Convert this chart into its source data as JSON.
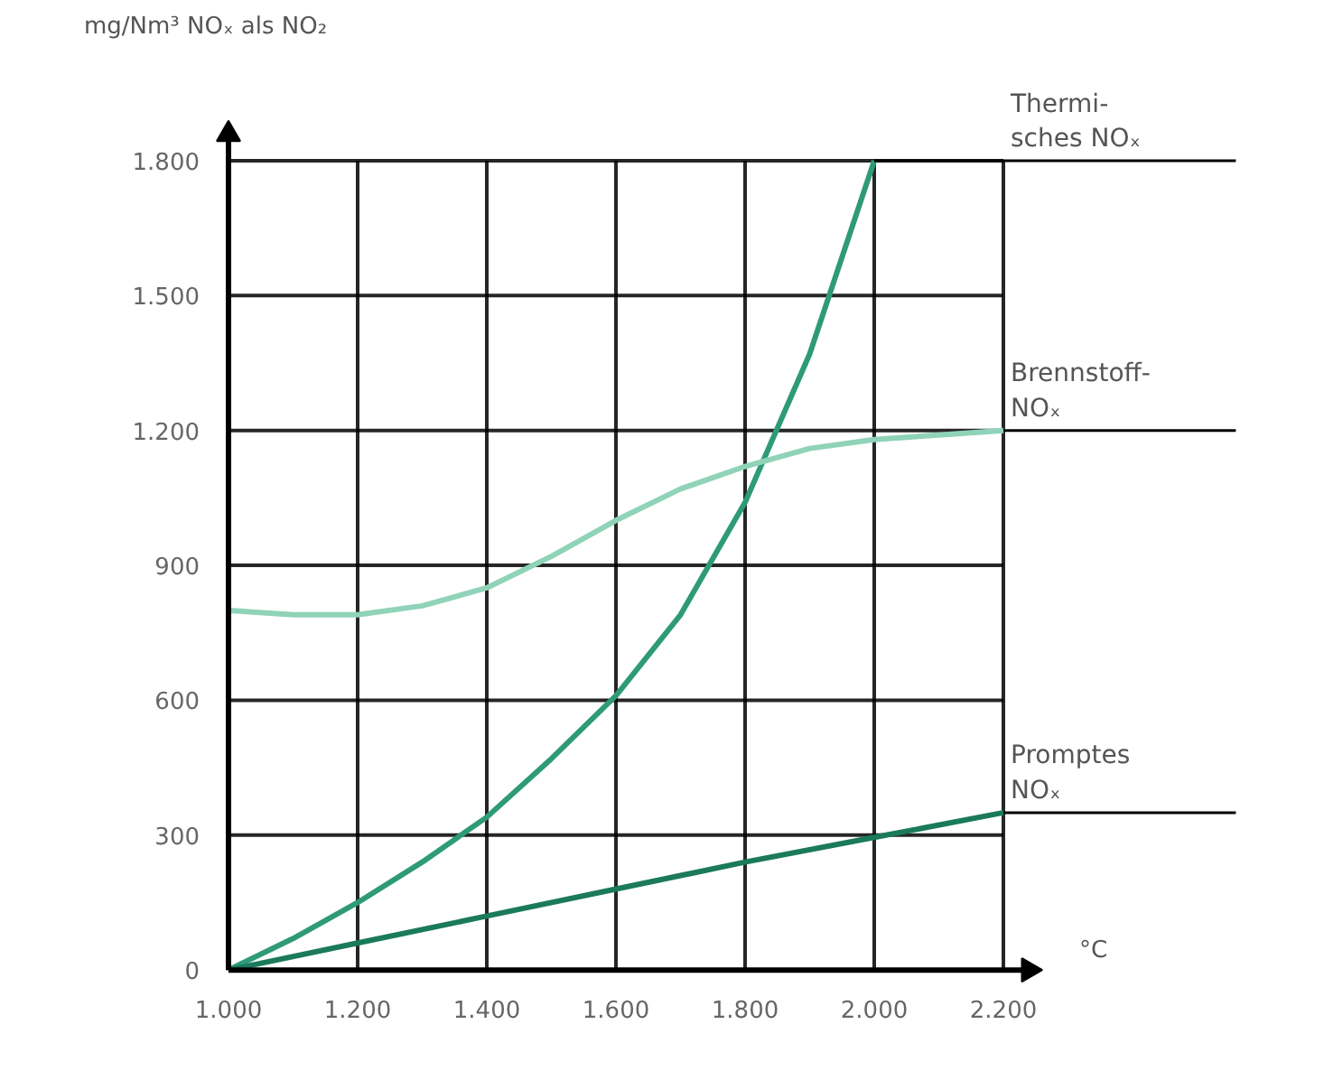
{
  "chart_data": {
    "type": "line",
    "ylabel": "mg/Nm³ NOₓ als NO₂",
    "xlabel": "°C",
    "xlim": [
      1000,
      2200
    ],
    "ylim": [
      0,
      1800
    ],
    "xticks": [
      {
        "value": 1000,
        "label": "1.000"
      },
      {
        "value": 1200,
        "label": "1.200"
      },
      {
        "value": 1400,
        "label": "1.400"
      },
      {
        "value": 1600,
        "label": "1.600"
      },
      {
        "value": 1800,
        "label": "1.800"
      },
      {
        "value": 2000,
        "label": "2.000"
      },
      {
        "value": 2200,
        "label": "2.200"
      }
    ],
    "yticks": [
      0,
      300,
      600,
      900,
      {
        "value": 1200,
        "label": "1.200"
      },
      {
        "value": 1500,
        "label": "1.500"
      },
      {
        "value": 1800,
        "label": "1.800"
      }
    ],
    "grid": true,
    "series": [
      {
        "name": "Thermi-\nsches NOₓ",
        "color": "#2e9a78",
        "x": [
          1000,
          1100,
          1200,
          1300,
          1400,
          1500,
          1600,
          1700,
          1800,
          1900,
          2000
        ],
        "values": [
          0,
          70,
          150,
          240,
          340,
          470,
          610,
          790,
          1040,
          1370,
          1800
        ]
      },
      {
        "name": "Brennstoff-\nNOₓ",
        "color": "#8fd3b8",
        "x": [
          1000,
          1100,
          1200,
          1300,
          1400,
          1500,
          1600,
          1700,
          1800,
          1900,
          2000,
          2100,
          2200
        ],
        "values": [
          800,
          790,
          790,
          810,
          850,
          920,
          1000,
          1070,
          1120,
          1160,
          1180,
          1190,
          1200
        ]
      },
      {
        "name": "Promptes\nNOₓ",
        "color": "#1b7a5c",
        "x": [
          1000,
          1200,
          1400,
          1600,
          1800,
          2000,
          2200
        ],
        "values": [
          0,
          60,
          120,
          180,
          240,
          295,
          350
        ]
      }
    ]
  }
}
